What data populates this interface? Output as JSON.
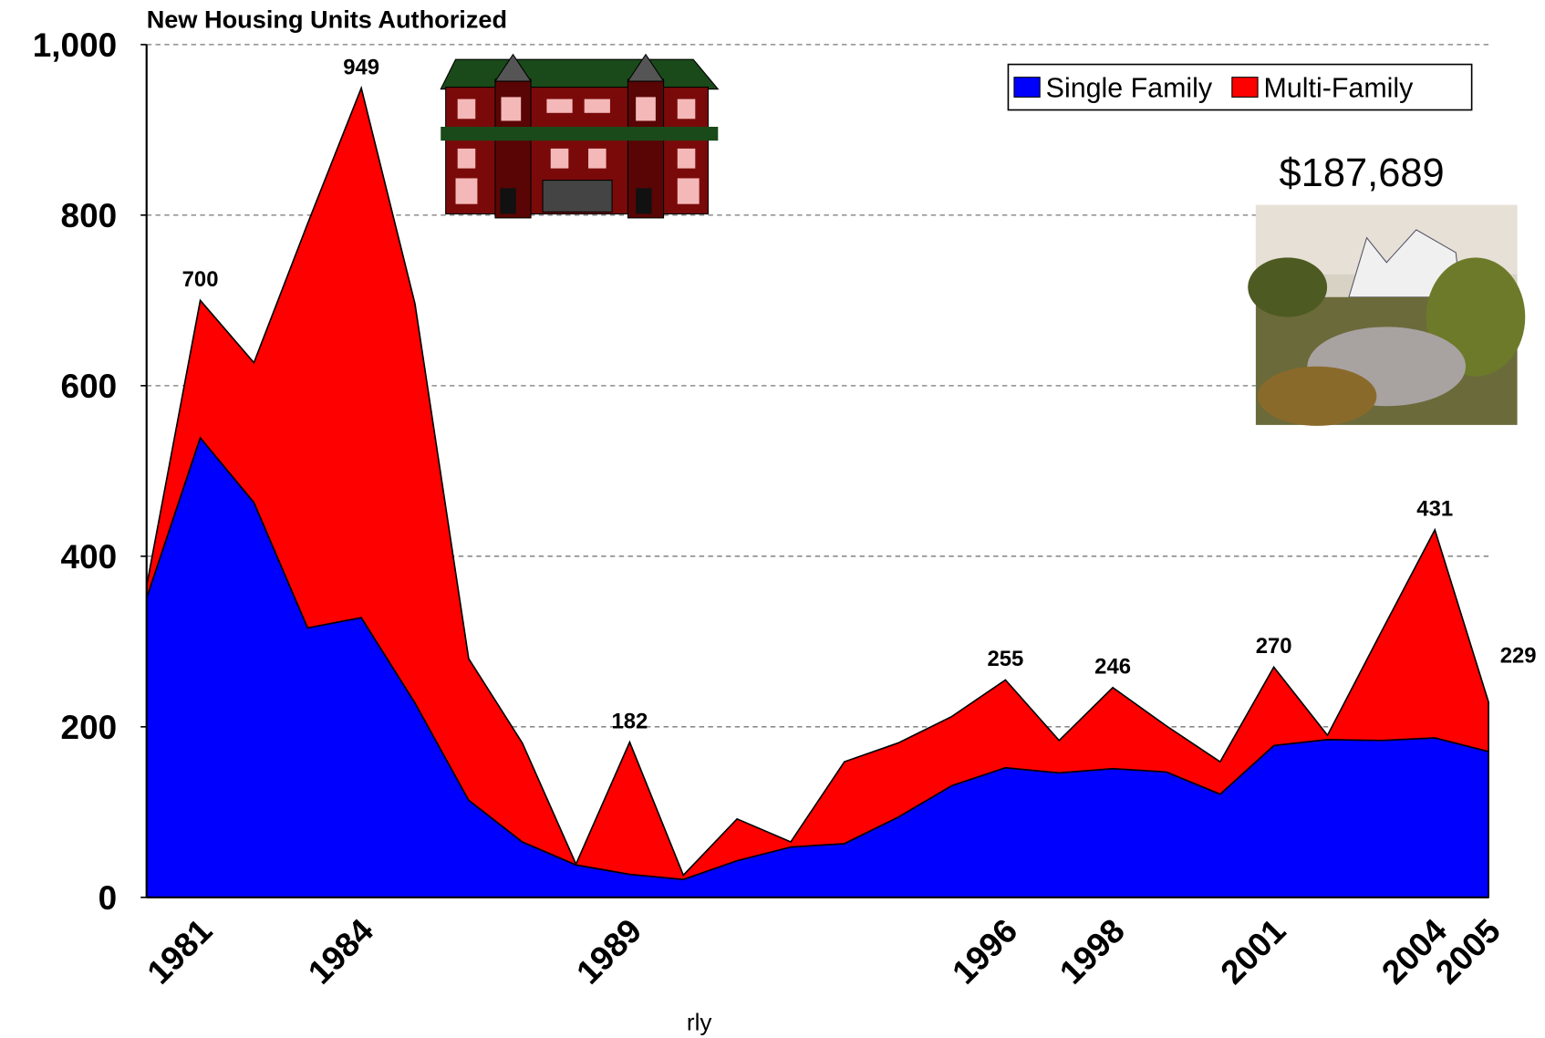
{
  "chart_data": {
    "type": "stacked-area",
    "title": "New Housing Units Authorized",
    "x_label": "rly",
    "categories": [
      null,
      "1981",
      null,
      null,
      "1984",
      null,
      null,
      null,
      null,
      "1989",
      null,
      null,
      null,
      null,
      null,
      null,
      "1996",
      null,
      "1998",
      null,
      null,
      "2001",
      null,
      null,
      "2004",
      "2005"
    ],
    "series": [
      {
        "name": "Single Family",
        "color": "#0000ff",
        "values": [
          351,
          539,
          463,
          316,
          328,
          228,
          114,
          65,
          38,
          27,
          21,
          43,
          59,
          63,
          94,
          131,
          152,
          146,
          151,
          147,
          121,
          178,
          185,
          184,
          187,
          171
        ]
      },
      {
        "name": "Multi-Family",
        "color": "#ff0000",
        "values": [
          14,
          161,
          164,
          474,
          621,
          468,
          166,
          116,
          1,
          155,
          5,
          49,
          6,
          96,
          87,
          81,
          103,
          38,
          95,
          54,
          38,
          92,
          5,
          127,
          244,
          58
        ]
      }
    ],
    "total_labels": [
      {
        "index": 1,
        "value": 700
      },
      {
        "index": 4,
        "value": 949
      },
      {
        "index": 9,
        "value": 182
      },
      {
        "index": 16,
        "value": 255
      },
      {
        "index": 18,
        "value": 246
      },
      {
        "index": 21,
        "value": 270
      },
      {
        "index": 24,
        "value": 431
      },
      {
        "index": 25,
        "value": 229
      }
    ],
    "price_annotation": "$187,689",
    "ylim": [
      0,
      1000
    ],
    "yticks": [
      0,
      200,
      400,
      600,
      800,
      {
        "value": 1000,
        "label": "1,000"
      }
    ],
    "grid": true,
    "legend": "top-right"
  }
}
